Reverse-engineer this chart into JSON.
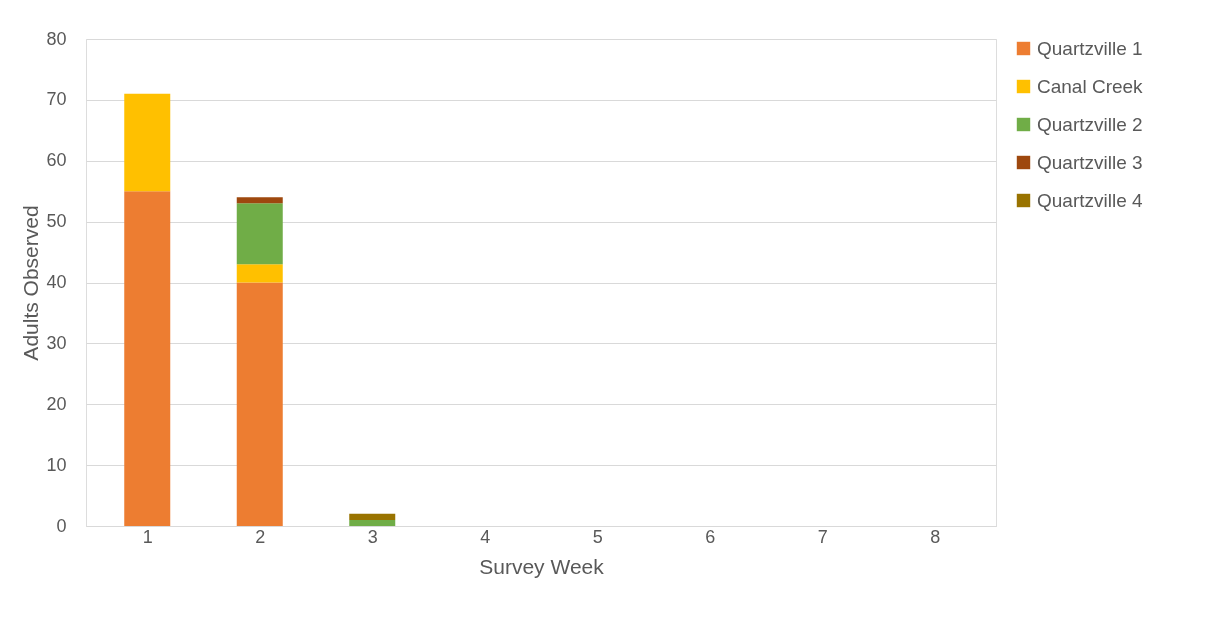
{
  "chart_data": {
    "type": "bar",
    "stacked": true,
    "xlabel": "Survey Week",
    "ylabel": "Adults Observed",
    "categories": [
      "1",
      "2",
      "3",
      "4",
      "5",
      "6",
      "7",
      "8"
    ],
    "series": [
      {
        "name": "Quartzville 1",
        "color": "#ed7d31",
        "values": [
          55,
          40,
          0,
          0,
          0,
          0,
          0,
          0
        ]
      },
      {
        "name": "Canal Creek",
        "color": "#ffc000",
        "values": [
          16,
          3,
          0,
          0,
          0,
          0,
          0,
          0
        ]
      },
      {
        "name": "Quartzville 2",
        "color": "#70ad47",
        "values": [
          0,
          10,
          1,
          0,
          0,
          0,
          0,
          0
        ]
      },
      {
        "name": "Quartzville 3",
        "color": "#9e480e",
        "values": [
          0,
          1,
          0,
          0,
          0,
          0,
          0,
          0
        ]
      },
      {
        "name": "Quartzville 4",
        "color": "#997300",
        "values": [
          0,
          0,
          1,
          0,
          0,
          0,
          0,
          0
        ]
      }
    ],
    "ylim": [
      0,
      80
    ],
    "yticks": [
      0,
      10,
      20,
      30,
      40,
      50,
      60,
      70,
      80
    ],
    "grid": "y",
    "legend": "right"
  }
}
